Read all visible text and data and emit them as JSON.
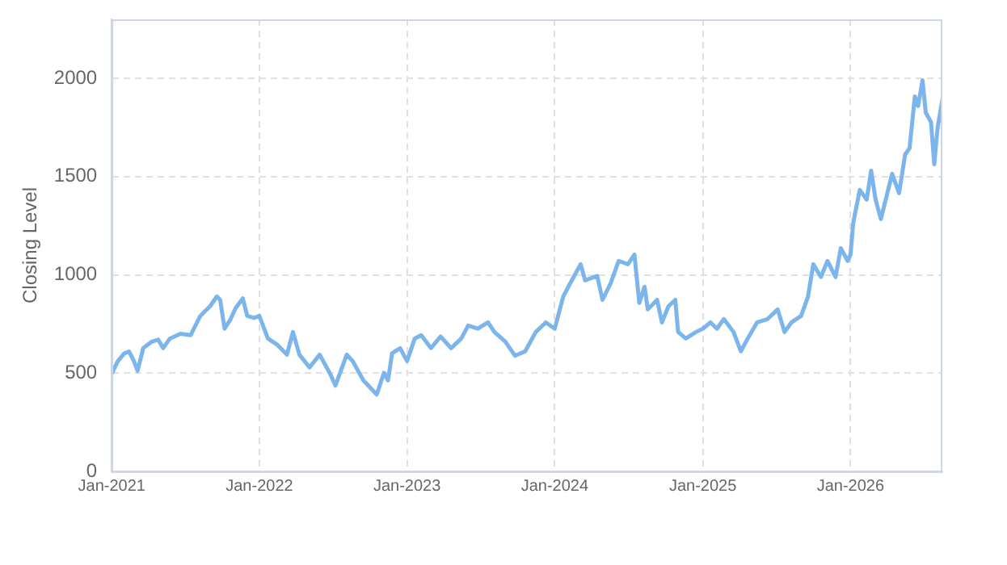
{
  "chart_data": {
    "type": "line",
    "ylabel": "Closing Level",
    "x": [
      "2021-01-01",
      "2021-01-16",
      "2021-02-01",
      "2021-02-13",
      "2021-02-25",
      "2021-03-06",
      "2021-03-20",
      "2021-04-10",
      "2021-04-26",
      "2021-05-08",
      "2021-05-25",
      "2021-06-20",
      "2021-07-15",
      "2021-08-08",
      "2021-09-01",
      "2021-09-18",
      "2021-09-26",
      "2021-10-07",
      "2021-10-22",
      "2021-11-03",
      "2021-11-21",
      "2021-12-02",
      "2021-12-19",
      "2022-01-01",
      "2022-01-22",
      "2022-02-15",
      "2022-03-10",
      "2022-03-25",
      "2022-04-10",
      "2022-05-05",
      "2022-05-30",
      "2022-06-25",
      "2022-07-08",
      "2022-08-05",
      "2022-08-20",
      "2022-09-15",
      "2022-10-18",
      "2022-11-05",
      "2022-11-15",
      "2022-11-25",
      "2022-12-15",
      "2023-01-01",
      "2023-01-20",
      "2023-02-05",
      "2023-03-01",
      "2023-03-25",
      "2023-04-20",
      "2023-05-15",
      "2023-06-01",
      "2023-06-25",
      "2023-07-20",
      "2023-08-05",
      "2023-09-01",
      "2023-09-25",
      "2023-10-20",
      "2023-11-15",
      "2023-12-10",
      "2024-01-01",
      "2024-01-22",
      "2024-02-08",
      "2024-03-05",
      "2024-03-16",
      "2024-04-15",
      "2024-04-28",
      "2024-05-18",
      "2024-06-07",
      "2024-06-30",
      "2024-07-16",
      "2024-07-28",
      "2024-08-10",
      "2024-08-18",
      "2024-09-10",
      "2024-09-22",
      "2024-10-08",
      "2024-10-25",
      "2024-11-01",
      "2024-11-20",
      "2024-12-15",
      "2025-01-01",
      "2025-01-20",
      "2025-02-05",
      "2025-02-22",
      "2025-03-18",
      "2025-04-05",
      "2025-04-22",
      "2025-05-15",
      "2025-06-10",
      "2025-07-05",
      "2025-07-22",
      "2025-08-08",
      "2025-09-01",
      "2025-09-18",
      "2025-10-01",
      "2025-10-20",
      "2025-11-05",
      "2025-11-25",
      "2025-12-08",
      "2025-12-25",
      "2026-01-01",
      "2026-01-08",
      "2026-01-24",
      "2026-02-10",
      "2026-02-21",
      "2026-03-04",
      "2026-03-17",
      "2026-04-02",
      "2026-04-14",
      "2026-05-01",
      "2026-05-16",
      "2026-05-27",
      "2026-06-09",
      "2026-06-17",
      "2026-06-28",
      "2026-07-06",
      "2026-07-19",
      "2026-07-27",
      "2026-08-04",
      "2026-08-16"
    ],
    "series": [
      {
        "color": "#7cb5ec",
        "values": [
          496,
          560,
          600,
          610,
          560,
          512,
          627,
          660,
          670,
          627,
          676,
          700,
          693,
          791,
          840,
          890,
          873,
          726,
          775,
          830,
          880,
          791,
          781,
          791,
          676,
          643,
          594,
          709,
          594,
          529,
          594,
          496,
          437,
          594,
          560,
          463,
          391,
          502,
          463,
          601,
          627,
          561,
          676,
          693,
          627,
          686,
          627,
          676,
          742,
          726,
          758,
          709,
          660,
          588,
          611,
          709,
          758,
          726,
          890,
          956,
          1054,
          972,
          995,
          873,
          956,
          1071,
          1054,
          1103,
          857,
          939,
          824,
          873,
          758,
          840,
          873,
          709,
          676,
          709,
          726,
          758,
          726,
          775,
          709,
          611,
          676,
          758,
          775,
          824,
          709,
          758,
          791,
          890,
          1054,
          989,
          1071,
          989,
          1136,
          1071,
          1103,
          1268,
          1432,
          1383,
          1530,
          1383,
          1284,
          1415,
          1514,
          1415,
          1612,
          1645,
          1908,
          1859,
          1990,
          1826,
          1777,
          1563,
          1744,
          1892
        ]
      }
    ],
    "xlim": [
      "2021-01-01",
      "2026-08-16"
    ],
    "xticks": [
      {
        "value": "2021-01-01",
        "label": "Jan-2021"
      },
      {
        "value": "2022-01-01",
        "label": "Jan-2022"
      },
      {
        "value": "2023-01-01",
        "label": "Jan-2023"
      },
      {
        "value": "2024-01-01",
        "label": "Jan-2024"
      },
      {
        "value": "2025-01-01",
        "label": "Jan-2025"
      },
      {
        "value": "2026-01-01",
        "label": "Jan-2026"
      }
    ],
    "ylim": [
      0,
      2300
    ],
    "yticks": [
      0,
      500,
      1000,
      1500,
      2000
    ],
    "grid": true,
    "legend": false,
    "marker": "none",
    "line_style": "solid"
  }
}
